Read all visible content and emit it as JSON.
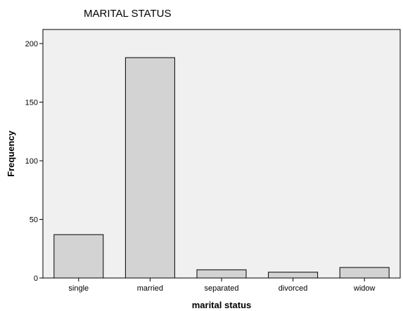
{
  "chart_data": {
    "type": "bar",
    "title": "MARITAL STATUS",
    "xlabel": "marital status",
    "ylabel": "Frequency",
    "categories": [
      "single",
      "married",
      "separated",
      "divorced",
      "widow"
    ],
    "values": [
      37,
      188,
      7,
      5,
      9
    ],
    "ylim": [
      0,
      212
    ],
    "yticks": [
      0,
      50,
      100,
      150,
      200
    ],
    "grid": false,
    "legend": "none",
    "colors": {
      "plot_background": "#f0f0f0",
      "bar_fill": "#d3d3d3",
      "bar_stroke": "#000000"
    }
  }
}
